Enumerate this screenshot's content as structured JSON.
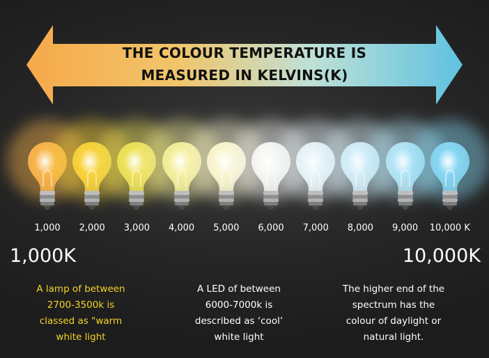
{
  "title": {
    "line1": "THE COLOUR TEMPERATURE IS",
    "line2": "MEASURED IN KELVINS(K)"
  },
  "arrow": {
    "icon": "double-headed-arrow-icon",
    "gradient": [
      "#f6a94a",
      "#f1c56b",
      "#bfe0d6",
      "#5fc2e0"
    ]
  },
  "scale": {
    "ticks": [
      "1,000",
      "2,000",
      "3,000",
      "4,000",
      "5,000",
      "6,000",
      "7,000",
      "8,000",
      "9,000",
      "10,000 K"
    ],
    "bulb_colors": [
      "#f9b44c",
      "#f8d23a",
      "#eee25a",
      "#f4ef9c",
      "#f9f6cf",
      "#f7f7f4",
      "#e9f4f9",
      "#d4eef8",
      "#b4e5f6",
      "#86d6f1"
    ],
    "bulb_icon": "light-bulb-icon",
    "min_label": "1,000K",
    "max_label": "10,000K"
  },
  "notes": {
    "warm": [
      "A lamp of between",
      "2700-3500k is",
      "classed as \"warm",
      "white light"
    ],
    "cool": [
      "A LED of between",
      "6000-7000k is",
      "described as ‘cool’",
      "white light"
    ],
    "high": [
      "The higher end of the",
      "spectrum has the",
      "colour of daylight or",
      "natural light."
    ]
  },
  "colors": {
    "warm_note": "#f5d327",
    "text": "#ffffff",
    "title": "#111111",
    "background": "#262626"
  }
}
